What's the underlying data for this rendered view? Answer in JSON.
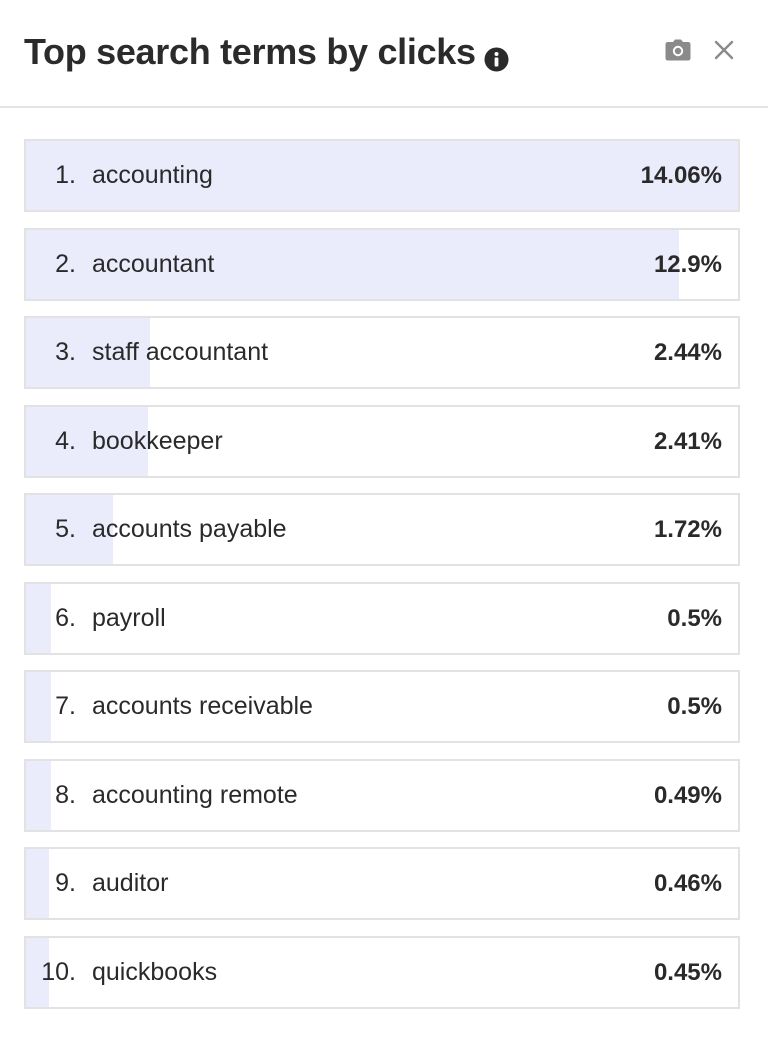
{
  "header": {
    "title": "Top search terms by clicks",
    "icons": {
      "info": "info-icon",
      "camera": "camera-icon",
      "close": "close-icon"
    }
  },
  "colors": {
    "bar": "#eaebfb",
    "border": "#e2e2e2",
    "text": "#2a2a2a"
  },
  "terms": [
    {
      "rank": "1.",
      "term": "accounting",
      "pct_label": "14.06%",
      "share": 14.06
    },
    {
      "rank": "2.",
      "term": "accountant",
      "pct_label": "12.9%",
      "share": 12.9
    },
    {
      "rank": "3.",
      "term": "staff accountant",
      "pct_label": "2.44%",
      "share": 2.44
    },
    {
      "rank": "4.",
      "term": "bookkeeper",
      "pct_label": "2.41%",
      "share": 2.41
    },
    {
      "rank": "5.",
      "term": "accounts payable",
      "pct_label": "1.72%",
      "share": 1.72
    },
    {
      "rank": "6.",
      "term": "payroll",
      "pct_label": "0.5%",
      "share": 0.5
    },
    {
      "rank": "7.",
      "term": "accounts receivable",
      "pct_label": "0.5%",
      "share": 0.5
    },
    {
      "rank": "8.",
      "term": "accounting remote",
      "pct_label": "0.49%",
      "share": 0.49
    },
    {
      "rank": "9.",
      "term": "auditor",
      "pct_label": "0.46%",
      "share": 0.46
    },
    {
      "rank": "10.",
      "term": "quickbooks",
      "pct_label": "0.45%",
      "share": 0.45
    }
  ]
}
